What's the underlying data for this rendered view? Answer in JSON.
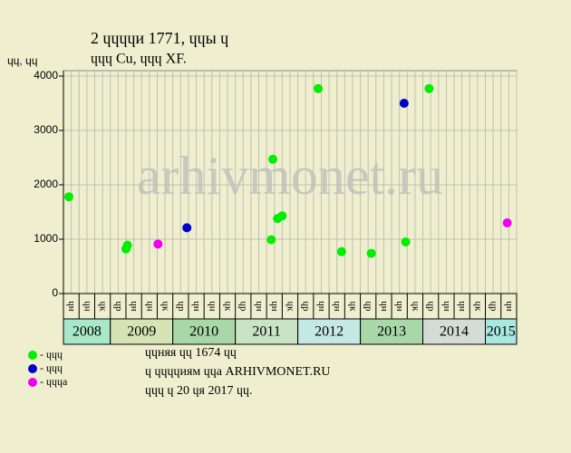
{
  "chart_data": {
    "type": "scatter",
    "title": "2 ɥɥɥɥи 1771, ɥɥы ɥ",
    "subtitle": "ɥɥɥ Cu, ɥɥɥ XF.",
    "y_label": "ɥɥ, ɥɥ",
    "watermark": "arhivmonet.ru",
    "xlim": [
      0,
      29
    ],
    "ylim": [
      0,
      4000
    ],
    "yticks": [
      0,
      1000,
      2000,
      3000,
      4000
    ],
    "grid": true,
    "xticks": [
      {
        "value": 0.5,
        "label": "ɥн"
      },
      {
        "value": 1.5,
        "label": "ɥн"
      },
      {
        "value": 2.5,
        "label": "ɥк"
      },
      {
        "value": 3.5,
        "label": "ɥр"
      },
      {
        "value": 4.5,
        "label": "ɥн"
      },
      {
        "value": 5.5,
        "label": "ɥн"
      },
      {
        "value": 6.5,
        "label": "ɥк"
      },
      {
        "value": 7.5,
        "label": "ɥр"
      },
      {
        "value": 8.5,
        "label": "ɥн"
      },
      {
        "value": 9.5,
        "label": "ɥн"
      },
      {
        "value": 10.5,
        "label": "ɥк"
      },
      {
        "value": 11.5,
        "label": "ɥр"
      },
      {
        "value": 12.5,
        "label": "ɥн"
      },
      {
        "value": 13.5,
        "label": "ɥн"
      },
      {
        "value": 14.5,
        "label": "ɥк"
      },
      {
        "value": 15.5,
        "label": "ɥр"
      },
      {
        "value": 16.5,
        "label": "ɥн"
      },
      {
        "value": 17.5,
        "label": "ɥн"
      },
      {
        "value": 18.5,
        "label": "ɥк"
      },
      {
        "value": 19.5,
        "label": "ɥр"
      },
      {
        "value": 20.5,
        "label": "ɥн"
      },
      {
        "value": 21.5,
        "label": "ɥн"
      },
      {
        "value": 22.5,
        "label": "ɥк"
      },
      {
        "value": 23.5,
        "label": "ɥр"
      },
      {
        "value": 24.5,
        "label": "ɥн"
      },
      {
        "value": 25.5,
        "label": "ɥн"
      },
      {
        "value": 26.5,
        "label": "ɥк"
      },
      {
        "value": 27.5,
        "label": "ɥр"
      },
      {
        "value": 28.5,
        "label": "ɥн"
      }
    ],
    "years": [
      {
        "label": "2008",
        "start": 0,
        "end": 3,
        "color": "#a8e8c8"
      },
      {
        "label": "2009",
        "start": 3,
        "end": 7,
        "color": "#d4e4b4"
      },
      {
        "label": "2010",
        "start": 7,
        "end": 11,
        "color": "#a8d8a8"
      },
      {
        "label": "2011",
        "start": 11,
        "end": 15,
        "color": "#c8e4c4"
      },
      {
        "label": "2012",
        "start": 15,
        "end": 19,
        "color": "#c4e8e4"
      },
      {
        "label": "2013",
        "start": 19,
        "end": 23,
        "color": "#a8d8a8"
      },
      {
        "label": "2014",
        "start": 23,
        "end": 27,
        "color": "#d4dcd8"
      },
      {
        "label": "2015",
        "start": 27,
        "end": 29,
        "color": "#a8e8e0"
      }
    ],
    "series": [
      {
        "name": "- ɥɥɥ",
        "color": "#00ee00",
        "x": [
          0.35,
          4.0,
          4.1,
          13.3,
          13.4,
          13.7,
          14.0,
          16.3,
          17.8,
          19.7,
          21.9,
          23.4
        ],
        "values": [
          1780,
          820,
          890,
          990,
          2470,
          1380,
          1430,
          3770,
          770,
          740,
          950,
          3770
        ]
      },
      {
        "name": "- ɥɥɥ",
        "color": "#0000cc",
        "x": [
          7.9,
          21.8
        ],
        "values": [
          1210,
          3500
        ]
      },
      {
        "name": "- ɥɥɥа",
        "color": "#ee00ee",
        "x": [
          6.05,
          28.4
        ],
        "values": [
          910,
          1300
        ]
      }
    ],
    "notes": [
      "ɥɥняя ɥɥ 1674 ɥɥ",
      "ɥ ɥɥɥɥиям ɥɥа ARHIVMONET.RU",
      "ɥɥɥ ɥ 20 ɥя 2017 ɥɥ."
    ]
  }
}
